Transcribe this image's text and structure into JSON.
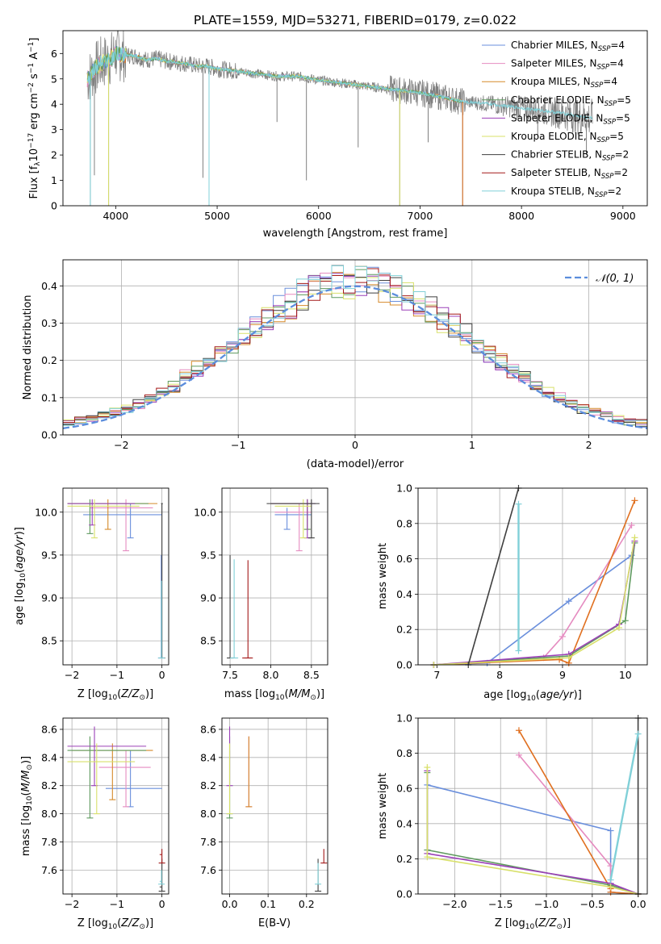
{
  "figure": {
    "title": "PLATE=1559, MJD=53271, FIBERID=0179, z=0.022"
  },
  "colors": {
    "chabrier_miles": "#6a8fdc",
    "salpeter_miles": "#e58bc0",
    "kroupa_miles": "#d58a2a",
    "chabrier_elodie": "#5f9a5f",
    "salpeter_elodie": "#9b40b8",
    "kroupa_elodie": "#d8e06a",
    "chabrier_stelib": "#3f3f3f",
    "salpeter_stelib": "#a31818",
    "kroupa_stelib": "#80d0d8",
    "data_gray": "#808080",
    "orange": "#e07020",
    "gauss": "#5b8ddc"
  },
  "chart_data": [
    {
      "id": "spectrum",
      "type": "line",
      "title": "PLATE=1559, MJD=53271, FIBERID=0179, z=0.022",
      "xlabel": "wavelength [Angstrom, rest frame]",
      "ylabel_parts": [
        "Flux [f",
        "λ",
        "10",
        "−17",
        " erg cm",
        "−2",
        " s",
        "−1",
        " A",
        "−1",
        "]"
      ],
      "xlim": [
        3480,
        9240
      ],
      "ylim": [
        0,
        6.9
      ],
      "xticks": [
        4000,
        5000,
        6000,
        7000,
        8000,
        9000
      ],
      "yticks": [
        0,
        1,
        2,
        3,
        4,
        5,
        6
      ],
      "legend": [
        {
          "key": "chabrier_miles",
          "label": "Chabrier MILES, N",
          "sub": "SSP",
          "suffix": "=4"
        },
        {
          "key": "salpeter_miles",
          "label": "Salpeter MILES, N",
          "sub": "SSP",
          "suffix": "=4"
        },
        {
          "key": "kroupa_miles",
          "label": "Kroupa MILES, N",
          "sub": "SSP",
          "suffix": "=4"
        },
        {
          "key": "chabrier_elodie",
          "label": "Chabrier ELODIE, N",
          "sub": "SSP",
          "suffix": "=5"
        },
        {
          "key": "salpeter_elodie",
          "label": "Salpeter ELODIE, N",
          "sub": "SSP",
          "suffix": "=5"
        },
        {
          "key": "kroupa_elodie",
          "label": "Kroupa ELODIE, N",
          "sub": "SSP",
          "suffix": "=5"
        },
        {
          "key": "chabrier_stelib",
          "label": "Chabrier STELIB, N",
          "sub": "SSP",
          "suffix": "=2"
        },
        {
          "key": "salpeter_stelib",
          "label": "Salpeter STELIB, N",
          "sub": "SSP",
          "suffix": "=2"
        },
        {
          "key": "kroupa_stelib",
          "label": "Kroupa STELIB, N",
          "sub": "SSP",
          "suffix": "=2"
        }
      ],
      "continuum": [
        [
          3720,
          5.0
        ],
        [
          3760,
          5.2
        ],
        [
          3800,
          5.4
        ],
        [
          3850,
          5.6
        ],
        [
          3900,
          5.7
        ],
        [
          3950,
          5.8
        ],
        [
          4000,
          6.0
        ],
        [
          4050,
          5.95
        ],
        [
          4100,
          5.95
        ],
        [
          4200,
          5.9
        ],
        [
          4300,
          5.75
        ],
        [
          4400,
          5.8
        ],
        [
          4500,
          5.7
        ],
        [
          4600,
          5.65
        ],
        [
          4700,
          5.6
        ],
        [
          4800,
          5.5
        ],
        [
          4900,
          5.5
        ],
        [
          5000,
          5.4
        ],
        [
          5200,
          5.3
        ],
        [
          5400,
          5.2
        ],
        [
          5600,
          5.1
        ],
        [
          5800,
          5.1
        ],
        [
          6000,
          4.95
        ],
        [
          6200,
          4.85
        ],
        [
          6400,
          4.75
        ],
        [
          6600,
          4.65
        ],
        [
          6800,
          4.55
        ],
        [
          7000,
          4.45
        ],
        [
          7200,
          4.3
        ],
        [
          7420,
          4.1
        ],
        [
          7600,
          4.05
        ],
        [
          7800,
          3.95
        ],
        [
          8000,
          3.85
        ],
        [
          8200,
          3.75
        ],
        [
          8400,
          3.65
        ],
        [
          8600,
          3.5
        ],
        [
          8700,
          3.45
        ]
      ],
      "data_range": [
        3720,
        8700
      ],
      "miles_range": [
        3720,
        7420
      ],
      "spikes": [
        [
          3750,
          0.0
        ],
        [
          3790,
          1.2
        ],
        [
          3930,
          0.0
        ],
        [
          4860,
          1.1
        ],
        [
          4920,
          0.0
        ],
        [
          5590,
          3.3
        ],
        [
          5880,
          1.0
        ],
        [
          6390,
          2.3
        ],
        [
          6800,
          0.0
        ],
        [
          7080,
          2.5
        ],
        [
          7420,
          0.0
        ],
        [
          8160,
          2.7
        ],
        [
          8640,
          2.0
        ]
      ]
    },
    {
      "id": "residuals",
      "type": "bar",
      "xlabel": "(data-model)/error",
      "ylabel": "Normed distribution",
      "xlim": [
        -2.5,
        2.5
      ],
      "ylim": [
        0,
        0.47
      ],
      "xticks": [
        -2,
        -1,
        0,
        1,
        2
      ],
      "yticks": [
        0.0,
        0.1,
        0.2,
        0.3,
        0.4
      ],
      "legend_label": "𝒩(0, 1)",
      "bin_width": 0.1
    },
    {
      "id": "age_vs_Z",
      "type": "scatter",
      "xlabel": "Z [log10(Z/Z⊙)]",
      "ylabel": "age  [log10(age/yr)]",
      "xlim": [
        -2.2,
        0.15
      ],
      "ylim": [
        8.22,
        10.28
      ],
      "xticks": [
        -2,
        -1,
        0
      ],
      "yticks": [
        8.5,
        9.0,
        9.5,
        10.0
      ]
    },
    {
      "id": "age_vs_mass",
      "type": "scatter",
      "xlabel": "mass [log10(M/M⊙)]",
      "ylabel": "",
      "xlim": [
        7.4,
        8.7
      ],
      "ylim": [
        8.22,
        10.28
      ],
      "xticks": [
        7.5,
        8.0,
        8.5
      ],
      "yticks": [
        8.5,
        9.0,
        9.5,
        10.0
      ]
    },
    {
      "id": "weight_vs_age",
      "type": "line",
      "xlabel": "age  [log10(age/yr)]",
      "ylabel": "mass weight",
      "xlim": [
        6.7,
        10.35
      ],
      "ylim": [
        0,
        1
      ],
      "xticks": [
        7,
        8,
        9,
        10
      ],
      "yticks": [
        0.0,
        0.2,
        0.4,
        0.6,
        0.8,
        1.0
      ]
    },
    {
      "id": "mass_vs_Z",
      "type": "scatter",
      "xlabel": "Z [log10(Z/Z⊙)]",
      "ylabel": "mass [log10(M/M⊙)]",
      "xlim": [
        -2.2,
        0.15
      ],
      "ylim": [
        7.43,
        8.68
      ],
      "xticks": [
        -2,
        -1,
        0
      ],
      "yticks": [
        7.6,
        7.8,
        8.0,
        8.2,
        8.4,
        8.6
      ]
    },
    {
      "id": "mass_vs_ebv",
      "type": "scatter",
      "xlabel": "E(B-V)",
      "ylabel": "",
      "xlim": [
        -0.02,
        0.255
      ],
      "ylim": [
        7.43,
        8.68
      ],
      "xticks": [
        0.0,
        0.1,
        0.2
      ],
      "yticks": [
        7.6,
        7.8,
        8.0,
        8.2,
        8.4,
        8.6
      ]
    },
    {
      "id": "weight_vs_Z",
      "type": "line",
      "xlabel": "Z [log10(Z/Z⊙)]",
      "ylabel": "mass weight",
      "xlim": [
        -2.4,
        0.1
      ],
      "ylim": [
        0,
        1
      ],
      "xticks": [
        -2.0,
        -1.5,
        -1.0,
        -0.5,
        0.0
      ],
      "yticks": [
        0.0,
        0.2,
        0.4,
        0.6,
        0.8,
        1.0
      ]
    }
  ],
  "crosses": {
    "age_vs_Z": [
      {
        "c": "chabrier_miles",
        "x": -0.015,
        "xl": -0.015,
        "xh": -0.015,
        "y": 8.3,
        "yl": 8.3,
        "yh": 9.5
      },
      {
        "c": "chabrier_miles",
        "x": -0.7,
        "xl": -1.75,
        "xh": 0.0,
        "y": 9.97,
        "yl": 9.7,
        "yh": 10.1
      },
      {
        "c": "salpeter_miles",
        "x": -0.8,
        "xl": -1.6,
        "xh": -0.2,
        "y": 10.05,
        "yl": 9.55,
        "yh": 10.15
      },
      {
        "c": "kroupa_miles",
        "x": -1.2,
        "xl": -2.1,
        "xh": -0.1,
        "y": 10.1,
        "yl": 9.8,
        "yh": 10.15
      },
      {
        "c": "chabrier_elodie",
        "x": -1.6,
        "xl": -2.1,
        "xh": -0.3,
        "y": 10.1,
        "yl": 9.75,
        "yh": 10.15
      },
      {
        "c": "salpeter_elodie",
        "x": -1.55,
        "xl": -2.1,
        "xh": -0.6,
        "y": 10.1,
        "yl": 9.85,
        "yh": 10.15
      },
      {
        "c": "kroupa_elodie",
        "x": -1.5,
        "xl": -2.1,
        "xh": -0.5,
        "y": 10.07,
        "yl": 9.7,
        "yh": 10.15
      },
      {
        "c": "chabrier_stelib",
        "x": 0.0,
        "xl": -0.02,
        "xh": 0.02,
        "y": 10.1,
        "yl": 8.3,
        "yh": 10.1
      },
      {
        "c": "kroupa_stelib",
        "x": -0.01,
        "xl": -0.03,
        "xh": 0.0,
        "y": 8.3,
        "yl": 8.3,
        "yh": 9.2
      }
    ],
    "age_vs_mass": [
      {
        "c": "chabrier_miles",
        "x": 8.2,
        "xl": 8.05,
        "xh": 8.5,
        "y": 9.97,
        "yl": 9.8,
        "yh": 10.05
      },
      {
        "c": "salpeter_miles",
        "x": 8.35,
        "xl": 8.05,
        "xh": 8.5,
        "y": 10.0,
        "yl": 9.55,
        "yh": 10.1
      },
      {
        "c": "kroupa_miles",
        "x": 8.45,
        "xl": 8.0,
        "xh": 8.5,
        "y": 10.1,
        "yl": 9.8,
        "yh": 10.15
      },
      {
        "c": "chabrier_elodie",
        "x": 8.45,
        "xl": 8.0,
        "xh": 8.55,
        "y": 10.1,
        "yl": 9.8,
        "yh": 10.15
      },
      {
        "c": "salpeter_elodie",
        "x": 8.45,
        "xl": 8.0,
        "xh": 8.55,
        "y": 10.1,
        "yl": 9.7,
        "yh": 10.15
      },
      {
        "c": "kroupa_elodie",
        "x": 8.4,
        "xl": 8.05,
        "xh": 8.5,
        "y": 10.07,
        "yl": 9.7,
        "yh": 10.15
      },
      {
        "c": "chabrier_stelib",
        "x": 8.5,
        "xl": 7.95,
        "xh": 8.6,
        "y": 10.1,
        "yl": 9.7,
        "yh": 10.15
      },
      {
        "c": "chabrier_stelib",
        "x": 7.5,
        "xl": 7.5,
        "xh": 7.55,
        "y": 8.3,
        "yl": 8.3,
        "yh": 9.5
      },
      {
        "c": "salpeter_stelib",
        "x": 7.72,
        "xl": 7.65,
        "xh": 7.78,
        "y": 8.3,
        "yl": 8.3,
        "yh": 9.44
      },
      {
        "c": "kroupa_stelib",
        "x": 7.55,
        "xl": 7.5,
        "xh": 7.6,
        "y": 8.3,
        "yl": 8.3,
        "yh": 9.45
      }
    ],
    "mass_vs_Z": [
      {
        "c": "chabrier_miles",
        "x": -0.7,
        "xl": -1.25,
        "xh": 0.0,
        "y": 8.18,
        "yl": 8.05,
        "yh": 8.45
      },
      {
        "c": "salpeter_miles",
        "x": -0.8,
        "xl": -1.4,
        "xh": -0.25,
        "y": 8.33,
        "yl": 8.05,
        "yh": 8.45
      },
      {
        "c": "kroupa_miles",
        "x": -1.1,
        "xl": -2.0,
        "xh": -0.2,
        "y": 8.45,
        "yl": 8.1,
        "yh": 8.5
      },
      {
        "c": "chabrier_elodie",
        "x": -1.6,
        "xl": -2.1,
        "xh": -0.35,
        "y": 8.45,
        "yl": 7.97,
        "yh": 8.55
      },
      {
        "c": "salpeter_elodie",
        "x": -1.5,
        "xl": -2.1,
        "xh": -0.35,
        "y": 8.48,
        "yl": 8.2,
        "yh": 8.62
      },
      {
        "c": "kroupa_elodie",
        "x": -1.45,
        "xl": -2.1,
        "xh": -0.6,
        "y": 8.37,
        "yl": 8.0,
        "yh": 8.5
      },
      {
        "c": "chabrier_stelib",
        "x": 0.0,
        "xl": -0.05,
        "xh": 0.0,
        "y": 7.48,
        "yl": 7.45,
        "yh": 7.68
      },
      {
        "c": "salpeter_stelib",
        "x": 0.0,
        "xl": -0.05,
        "xh": 0.0,
        "y": 7.71,
        "yl": 7.65,
        "yh": 7.75
      },
      {
        "c": "kroupa_stelib",
        "x": -0.01,
        "xl": -0.05,
        "xh": 0.0,
        "y": 7.52,
        "yl": 7.5,
        "yh": 7.6
      }
    ],
    "mass_vs_ebv": [
      {
        "c": "chabrier_miles",
        "x": 0.0,
        "xl": 0.0,
        "xh": 0.0,
        "y": 8.25,
        "yl": 8.0,
        "yh": 8.45
      },
      {
        "c": "salpeter_miles",
        "x": 0.05,
        "xl": 0.05,
        "xh": 0.05,
        "y": 8.3,
        "yl": 8.05,
        "yh": 8.55
      },
      {
        "c": "kroupa_miles",
        "x": 0.05,
        "xl": 0.05,
        "xh": 0.05,
        "y": 8.45,
        "yl": 8.05,
        "yh": 8.55
      },
      {
        "c": "chabrier_elodie",
        "x": 0.0,
        "xl": 0.0,
        "xh": 0.0,
        "y": 8.4,
        "yl": 7.97,
        "yh": 8.55
      },
      {
        "c": "salpeter_elodie",
        "x": 0.0,
        "xl": 0.0,
        "xh": 0.0,
        "y": 8.55,
        "yl": 8.2,
        "yh": 8.62
      },
      {
        "c": "kroupa_elodie",
        "x": 0.0,
        "xl": 0.0,
        "xh": 0.0,
        "y": 8.3,
        "yl": 8.0,
        "yh": 8.5
      },
      {
        "c": "chabrier_stelib",
        "x": 0.23,
        "xl": 0.23,
        "xh": 0.23,
        "y": 7.55,
        "yl": 7.45,
        "yh": 7.68
      },
      {
        "c": "salpeter_stelib",
        "x": 0.245,
        "xl": 0.245,
        "xh": 0.245,
        "y": 7.7,
        "yl": 7.65,
        "yh": 7.75
      },
      {
        "c": "kroupa_stelib",
        "x": 0.23,
        "xl": 0.23,
        "xh": 0.23,
        "y": 7.55,
        "yl": 7.5,
        "yh": 7.65
      }
    ]
  },
  "weight_lines": {
    "weight_vs_age": [
      {
        "c": "chabrier_miles",
        "pts": [
          [
            6.95,
            0.0
          ],
          [
            7.8,
            0.01
          ],
          [
            9.1,
            0.36
          ],
          [
            10.1,
            0.62
          ]
        ]
      },
      {
        "c": "salpeter_miles",
        "pts": [
          [
            6.95,
            0.0
          ],
          [
            8.7,
            0.04
          ],
          [
            9.0,
            0.16
          ],
          [
            10.1,
            0.79
          ]
        ]
      },
      {
        "c": "kroupa_miles",
        "pts": [
          [
            6.95,
            0.0
          ],
          [
            8.95,
            0.03
          ],
          [
            9.1,
            0.01
          ],
          [
            10.15,
            0.93
          ]
        ]
      },
      {
        "c": "chabrier_elodie",
        "pts": [
          [
            6.95,
            0.0
          ],
          [
            9.1,
            0.05
          ],
          [
            10.0,
            0.25
          ],
          [
            10.15,
            0.69
          ]
        ]
      },
      {
        "c": "salpeter_elodie",
        "pts": [
          [
            6.95,
            0.0
          ],
          [
            9.1,
            0.06
          ],
          [
            9.9,
            0.23
          ],
          [
            10.15,
            0.7
          ]
        ]
      },
      {
        "c": "kroupa_elodie",
        "pts": [
          [
            6.95,
            0.0
          ],
          [
            9.1,
            0.04
          ],
          [
            9.9,
            0.21
          ],
          [
            10.15,
            0.72
          ]
        ]
      },
      {
        "c": "chabrier_stelib",
        "pts": [
          [
            7.5,
            0.0
          ],
          [
            8.3,
            1.0
          ]
        ]
      },
      {
        "c": "kroupa_stelib",
        "pts": [
          [
            8.3,
            0.08
          ],
          [
            8.3,
            0.91
          ]
        ]
      }
    ],
    "weight_vs_Z": [
      {
        "c": "chabrier_miles",
        "pts": [
          [
            -2.3,
            0.62
          ],
          [
            -0.3,
            0.36
          ],
          [
            -0.3,
            0.01
          ],
          [
            0.0,
            0.0
          ]
        ]
      },
      {
        "c": "salpeter_miles",
        "pts": [
          [
            -1.3,
            0.79
          ],
          [
            -0.3,
            0.16
          ],
          [
            -0.3,
            0.04
          ],
          [
            0.0,
            0.0
          ]
        ]
      },
      {
        "c": "kroupa_miles",
        "pts": [
          [
            -1.3,
            0.93
          ],
          [
            -0.3,
            0.03
          ],
          [
            -0.3,
            0.01
          ],
          [
            0.0,
            0.0
          ]
        ]
      },
      {
        "c": "chabrier_elodie",
        "pts": [
          [
            -2.3,
            0.69
          ],
          [
            -2.3,
            0.25
          ],
          [
            -0.3,
            0.05
          ],
          [
            0.0,
            0.0
          ]
        ]
      },
      {
        "c": "salpeter_elodie",
        "pts": [
          [
            -2.3,
            0.7
          ],
          [
            -2.3,
            0.23
          ],
          [
            -0.3,
            0.06
          ],
          [
            0.0,
            0.0
          ]
        ]
      },
      {
        "c": "kroupa_elodie",
        "pts": [
          [
            -2.3,
            0.72
          ],
          [
            -2.3,
            0.21
          ],
          [
            -0.3,
            0.04
          ],
          [
            0.0,
            0.0
          ]
        ]
      },
      {
        "c": "chabrier_stelib",
        "pts": [
          [
            0.0,
            0.0
          ],
          [
            0.0,
            1.0
          ]
        ]
      },
      {
        "c": "kroupa_stelib",
        "pts": [
          [
            -0.3,
            0.08
          ],
          [
            0.0,
            0.91
          ]
        ]
      }
    ]
  }
}
